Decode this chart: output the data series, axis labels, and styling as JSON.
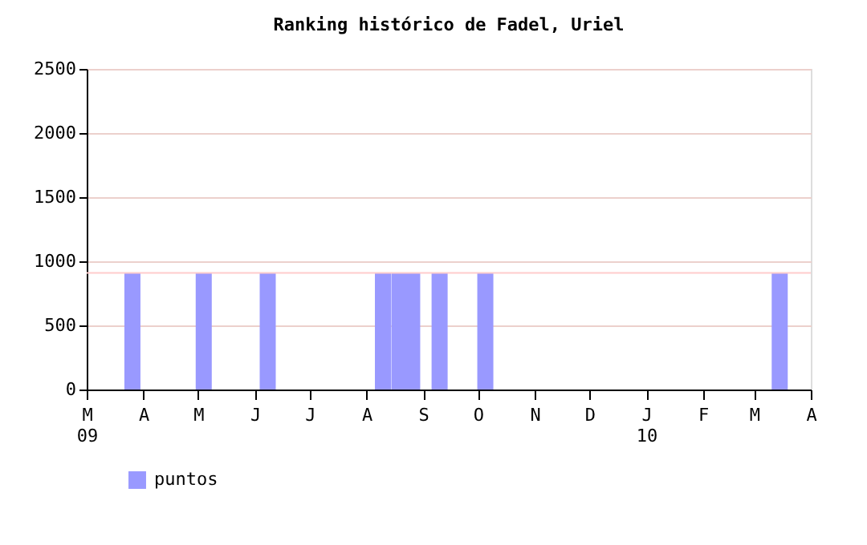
{
  "chart_data": {
    "type": "bar",
    "title": "Ranking histórico de Fadel, Uriel",
    "x": [
      "2009-03-26",
      "2009-05-04",
      "2009-06-08",
      "2009-08-10",
      "2009-08-19",
      "2009-08-26",
      "2009-09-10",
      "2009-10-05",
      "2010-03-15"
    ],
    "series": [
      {
        "name": "puntos",
        "color": "#9999ff",
        "values": [
          910,
          910,
          910,
          910,
          910,
          910,
          910,
          910,
          910
        ]
      }
    ],
    "xlim": [
      "2009-03-01",
      "2010-04-01"
    ],
    "xticks": [
      {
        "value": "2009-03-01",
        "label": "M\n09"
      },
      {
        "value": "2009-04-01",
        "label": "A"
      },
      {
        "value": "2009-05-01",
        "label": "M"
      },
      {
        "value": "2009-06-01",
        "label": "J"
      },
      {
        "value": "2009-07-01",
        "label": "J"
      },
      {
        "value": "2009-08-01",
        "label": "A"
      },
      {
        "value": "2009-09-01",
        "label": "S"
      },
      {
        "value": "2009-10-01",
        "label": "O"
      },
      {
        "value": "2009-11-01",
        "label": "N"
      },
      {
        "value": "2009-12-01",
        "label": "D"
      },
      {
        "value": "2010-01-01",
        "label": "J\n10"
      },
      {
        "value": "2010-02-01",
        "label": "F"
      },
      {
        "value": "2010-03-01",
        "label": "M"
      },
      {
        "value": "2010-04-01",
        "label": "A"
      }
    ],
    "ylim": [
      0,
      2500
    ],
    "yticks": [
      0,
      500,
      1000,
      1500,
      2000,
      2500
    ],
    "ref_lines": [
      {
        "axis": "y",
        "value": 910,
        "color": "#ffcccc"
      }
    ],
    "grid": "y",
    "legend": "bottom left"
  }
}
